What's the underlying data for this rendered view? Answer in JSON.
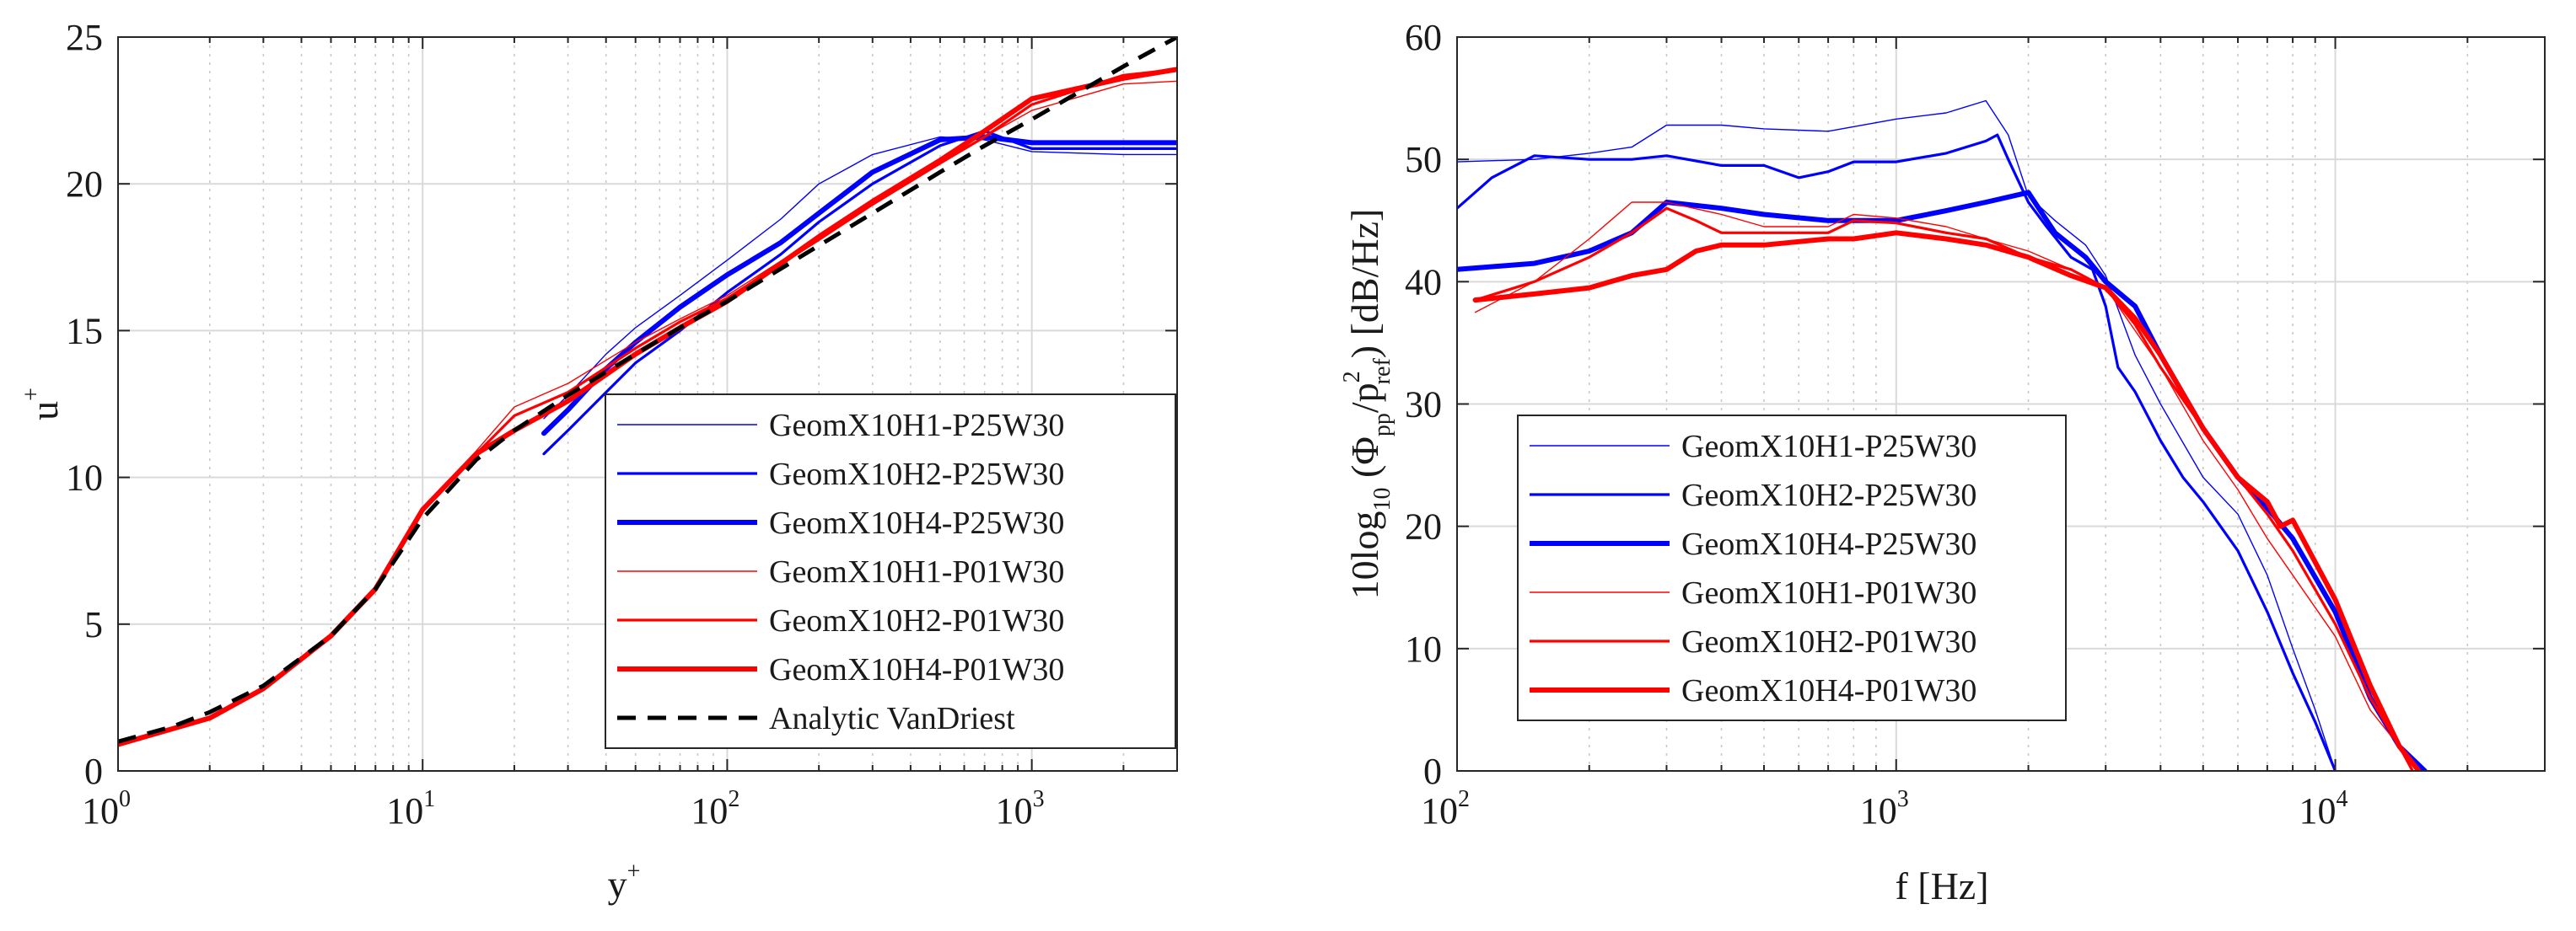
{
  "chart_data": [
    {
      "type": "line",
      "xscale": "log",
      "xlabel_base": "y",
      "xlabel_sup": "+",
      "ylabel_base": "u",
      "ylabel_sup": "+",
      "xlim": [
        1,
        3000
      ],
      "ylim": [
        0,
        25
      ],
      "xticks": [
        {
          "base": "10",
          "exp": "0",
          "value": 1
        },
        {
          "base": "10",
          "exp": "1",
          "value": 10
        },
        {
          "base": "10",
          "exp": "2",
          "value": 100
        },
        {
          "base": "10",
          "exp": "3",
          "value": 1000
        }
      ],
      "yticks": [
        "0",
        "5",
        "10",
        "15",
        "20",
        "25"
      ],
      "grid": true,
      "legend_position": "bottom-right",
      "series": [
        {
          "name": "GeomX10H1-P25W30",
          "color": "#0000ff",
          "width": 1.4,
          "dash": false,
          "x": [
            25,
            30,
            40,
            50,
            70,
            100,
            150,
            200,
            300,
            500,
            700,
            1000,
            2000,
            3000
          ],
          "y": [
            12.0,
            12.8,
            14.2,
            15.1,
            16.2,
            17.4,
            18.8,
            20.0,
            21.0,
            21.6,
            21.5,
            21.1,
            21.0,
            21.0
          ]
        },
        {
          "name": "GeomX10H2-P25W30",
          "color": "#0000ff",
          "width": 3.2,
          "dash": false,
          "x": [
            25,
            30,
            40,
            50,
            70,
            100,
            150,
            200,
            300,
            500,
            700,
            1000,
            2000,
            3000
          ],
          "y": [
            10.8,
            11.6,
            12.9,
            13.9,
            15.0,
            16.3,
            17.6,
            18.7,
            20.0,
            21.3,
            21.8,
            21.2,
            21.2,
            21.2
          ]
        },
        {
          "name": "GeomX10H4-P25W30",
          "color": "#0000ff",
          "width": 6.0,
          "dash": false,
          "x": [
            25,
            30,
            40,
            50,
            70,
            100,
            150,
            200,
            300,
            500,
            700,
            1000,
            2000,
            3000
          ],
          "y": [
            11.5,
            12.3,
            13.7,
            14.6,
            15.8,
            16.9,
            18.0,
            19.0,
            20.4,
            21.5,
            21.6,
            21.4,
            21.4,
            21.4
          ]
        },
        {
          "name": "GeomX10H1-P01W30",
          "color": "#ff0000",
          "width": 1.4,
          "dash": false,
          "x": [
            1,
            2,
            3,
            5,
            7,
            10,
            15,
            20,
            30,
            50,
            70,
            100,
            200,
            300,
            500,
            700,
            1000,
            2000,
            3000
          ],
          "y": [
            0.9,
            1.8,
            2.8,
            4.6,
            6.2,
            8.9,
            10.9,
            12.4,
            13.2,
            14.6,
            15.4,
            16.2,
            18.2,
            19.4,
            20.8,
            21.6,
            22.5,
            23.4,
            23.5
          ]
        },
        {
          "name": "GeomX10H2-P01W30",
          "color": "#ff0000",
          "width": 3.2,
          "dash": false,
          "x": [
            1,
            2,
            3,
            5,
            7,
            10,
            15,
            20,
            30,
            50,
            70,
            100,
            200,
            300,
            500,
            700,
            1000,
            2000,
            3000
          ],
          "y": [
            0.9,
            1.8,
            2.8,
            4.6,
            6.2,
            8.9,
            10.8,
            12.1,
            12.9,
            14.4,
            15.3,
            16.1,
            18.1,
            19.3,
            20.7,
            21.6,
            22.7,
            23.7,
            23.9
          ]
        },
        {
          "name": "GeomX10H4-P01W30",
          "color": "#ff0000",
          "width": 6.0,
          "dash": false,
          "x": [
            1,
            2,
            3,
            5,
            7,
            10,
            15,
            20,
            30,
            50,
            70,
            100,
            200,
            300,
            500,
            700,
            1000,
            2000,
            3000
          ],
          "y": [
            0.9,
            1.8,
            2.8,
            4.6,
            6.2,
            8.9,
            10.8,
            11.6,
            12.6,
            14.2,
            15.1,
            16.0,
            18.2,
            19.4,
            20.8,
            21.8,
            22.9,
            23.6,
            23.9
          ]
        },
        {
          "name": "Analytic VanDriest",
          "color": "#000000",
          "width": 5.0,
          "dash": true,
          "x": [
            1,
            1.5,
            2,
            3,
            5,
            7,
            10,
            15,
            20,
            30,
            50,
            70,
            100,
            200,
            300,
            500,
            700,
            1000,
            2000,
            3000
          ],
          "y": [
            1.0,
            1.5,
            2.0,
            2.9,
            4.6,
            6.2,
            8.6,
            10.6,
            11.6,
            12.8,
            14.2,
            15.1,
            16.0,
            17.9,
            19.0,
            20.4,
            21.3,
            22.2,
            24.0,
            25.0
          ]
        }
      ]
    },
    {
      "type": "line",
      "xscale": "log",
      "xlabel": "f [Hz]",
      "ylabel_parts": [
        "10log",
        "10",
        " (Φ",
        "pp",
        "/p",
        "2",
        "ref",
        ") [dB/Hz]"
      ],
      "xlim": [
        100,
        30000
      ],
      "ylim": [
        0,
        60
      ],
      "xticks": [
        {
          "base": "10",
          "exp": "2",
          "value": 100
        },
        {
          "base": "10",
          "exp": "3",
          "value": 1000
        },
        {
          "base": "10",
          "exp": "4",
          "value": 10000
        }
      ],
      "yticks": [
        "0",
        "10",
        "20",
        "30",
        "40",
        "50",
        "60"
      ],
      "grid": true,
      "legend_position": "bottom-left",
      "series": [
        {
          "name": "GeomX10H1-P25W30",
          "color": "#0000ff",
          "width": 1.4,
          "x": [
            100,
            150,
            200,
            250,
            300,
            400,
            500,
            700,
            1000,
            1300,
            1600,
            1800,
            2000,
            2300,
            2700,
            3000,
            3500,
            4000,
            5000,
            6000,
            7000,
            8000,
            9000,
            10000
          ],
          "y": [
            49.8,
            50.0,
            50.5,
            51.0,
            52.8,
            52.8,
            52.5,
            52.3,
            53.3,
            53.8,
            54.8,
            52.0,
            47.0,
            45.0,
            43.0,
            40.5,
            34.0,
            30.0,
            24.0,
            21.0,
            16.0,
            10.0,
            5.0,
            0.0
          ]
        },
        {
          "name": "GeomX10H2-P25W30",
          "color": "#0000ff",
          "width": 3.2,
          "x": [
            100,
            120,
            150,
            200,
            250,
            300,
            400,
            500,
            600,
            700,
            800,
            1000,
            1300,
            1600,
            1700,
            1800,
            2000,
            2200,
            2500,
            2800,
            3000,
            3200,
            3500,
            4000,
            4500,
            5000,
            6000,
            7000,
            8000,
            9000,
            10000
          ],
          "y": [
            46.0,
            48.5,
            50.3,
            50.0,
            50.0,
            50.3,
            49.5,
            49.5,
            48.5,
            49.0,
            49.8,
            49.8,
            50.5,
            51.5,
            52.0,
            50.0,
            46.5,
            44.5,
            42.0,
            41.0,
            38.0,
            33.0,
            31.0,
            27.0,
            24.0,
            22.0,
            18.0,
            13.0,
            8.0,
            4.0,
            0.0
          ]
        },
        {
          "name": "GeomX10H4-P25W30",
          "color": "#0000ff",
          "width": 6.0,
          "x": [
            100,
            150,
            200,
            250,
            300,
            400,
            500,
            700,
            1000,
            1300,
            1600,
            2000,
            2300,
            2700,
            3000,
            3500,
            4000,
            5000,
            6000,
            7000,
            8000,
            10000,
            12000,
            14000,
            16000
          ],
          "y": [
            41.0,
            41.5,
            42.5,
            44.0,
            46.5,
            46.0,
            45.5,
            45.0,
            45.0,
            45.8,
            46.5,
            47.3,
            44.0,
            42.0,
            40.0,
            38.0,
            34.0,
            28.0,
            24.0,
            21.5,
            19.0,
            13.0,
            6.0,
            2.0,
            0.0
          ]
        },
        {
          "name": "GeomX10H1-P01W30",
          "color": "#ff0000",
          "width": 1.4,
          "x": [
            110,
            150,
            200,
            250,
            300,
            400,
            500,
            700,
            800,
            1000,
            1300,
            1600,
            2000,
            2500,
            3000,
            3500,
            4000,
            5000,
            6000,
            7000,
            8000,
            10000,
            12000,
            14000,
            15000
          ],
          "y": [
            37.5,
            40.0,
            43.5,
            46.5,
            46.5,
            45.5,
            44.5,
            44.5,
            45.5,
            45.2,
            44.5,
            43.5,
            42.5,
            41.0,
            39.5,
            36.0,
            33.0,
            27.0,
            23.0,
            19.0,
            16.0,
            11.0,
            5.0,
            2.0,
            0.0
          ]
        },
        {
          "name": "GeomX10H2-P01W30",
          "color": "#ff0000",
          "width": 3.2,
          "x": [
            110,
            150,
            200,
            250,
            300,
            350,
            400,
            500,
            700,
            800,
            1000,
            1300,
            1600,
            2000,
            2500,
            3000,
            3500,
            4000,
            5000,
            6000,
            7000,
            8000,
            10000,
            12000,
            14000,
            15000
          ],
          "y": [
            38.5,
            40.0,
            42.0,
            44.0,
            46.0,
            45.0,
            44.0,
            44.0,
            44.0,
            45.0,
            44.8,
            44.0,
            43.5,
            42.0,
            41.0,
            39.5,
            36.5,
            33.0,
            28.0,
            24.0,
            21.0,
            18.0,
            12.0,
            6.0,
            2.0,
            0.0
          ]
        },
        {
          "name": "GeomX10H4-P01W30",
          "color": "#ff0000",
          "width": 6.0,
          "x": [
            110,
            150,
            200,
            250,
            300,
            350,
            400,
            500,
            700,
            800,
            1000,
            1300,
            1600,
            2000,
            2500,
            3000,
            3500,
            4000,
            5000,
            6000,
            7000,
            7500,
            8000,
            10000,
            12000,
            14000,
            15500
          ],
          "y": [
            38.5,
            39.0,
            39.5,
            40.5,
            41.0,
            42.5,
            43.0,
            43.0,
            43.5,
            43.5,
            44.0,
            43.5,
            43.0,
            42.0,
            40.5,
            39.5,
            37.0,
            34.0,
            28.0,
            24.0,
            22.0,
            20.0,
            20.5,
            14.0,
            7.0,
            2.0,
            0.0
          ]
        }
      ]
    }
  ]
}
